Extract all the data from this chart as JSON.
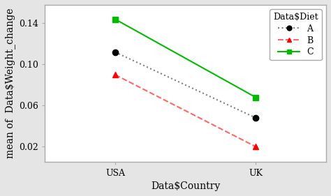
{
  "x_labels": [
    "USA",
    "UK"
  ],
  "x_positions": [
    0,
    1
  ],
  "series": [
    {
      "label": "A",
      "color": "#808080",
      "linestyle": "dotted",
      "marker": "o",
      "markerfacecolor": "black",
      "markercolor": "black",
      "values": [
        0.112,
        0.048
      ]
    },
    {
      "label": "B",
      "color": "#ff6666",
      "linestyle": "dashed",
      "marker": "^",
      "markerfacecolor": "red",
      "markercolor": "red",
      "values": [
        0.09,
        0.02
      ]
    },
    {
      "label": "C",
      "color": "#00bb00",
      "linestyle": "solid",
      "marker": "s",
      "markerfacecolor": "#00bb00",
      "markercolor": "#00bb00",
      "values": [
        0.144,
        0.068
      ]
    }
  ],
  "xlabel": "Data$Country",
  "ylabel": "mean of  Data$Weight_change",
  "legend_title": "Data$Diet",
  "ylim": [
    0.005,
    0.158
  ],
  "yticks": [
    0.02,
    0.06,
    0.1,
    0.14
  ],
  "xlim": [
    -0.5,
    1.5
  ],
  "background_color": "#e5e5e5",
  "plot_bg_color": "#ffffff",
  "axis_fontsize": 10,
  "tick_fontsize": 9,
  "legend_fontsize": 9
}
